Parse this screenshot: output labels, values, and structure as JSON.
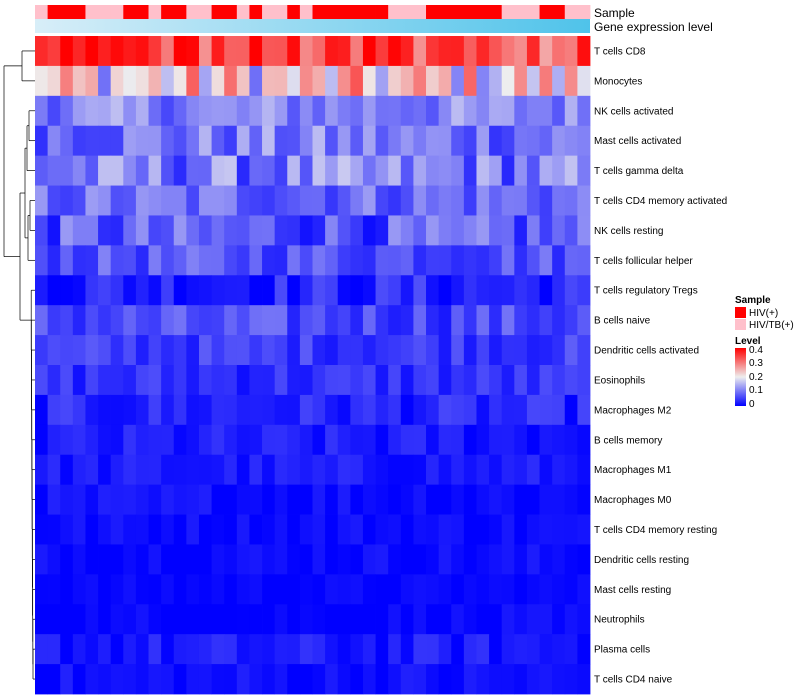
{
  "chart_data": {
    "type": "heatmap",
    "title": "",
    "rows": [
      "T cells CD8",
      "Monocytes",
      "NK cells activated",
      "Mast cells activated",
      "T cells gamma delta",
      "T cells CD4 memory activated",
      "NK cells resting",
      "T cells follicular helper",
      "T cells regulatory  Tregs",
      "B cells naive",
      "Dendritic cells activated",
      "Eosinophils",
      "Macrophages M2",
      "B cells memory",
      "Macrophages M1",
      "Macrophages M0",
      "T cells CD4 memory resting",
      "Dendritic cells resting",
      "Mast cells resting",
      "Neutrophils",
      "Plasma cells",
      "T cells CD4 naive"
    ],
    "n_samples": 44,
    "row_mean_levels": [
      0.34,
      0.21,
      0.11,
      0.1,
      0.1,
      0.09,
      0.07,
      0.07,
      0.03,
      0.06,
      0.05,
      0.04,
      0.03,
      0.02,
      0.02,
      0.01,
      0.01,
      0.01,
      0.005,
      0.0,
      0.02,
      0.01
    ],
    "sample_groups": [
      "T",
      "H",
      "H",
      "H",
      "T",
      "T",
      "T",
      "H",
      "H",
      "T",
      "H",
      "H",
      "T",
      "T",
      "H",
      "H",
      "T",
      "H",
      "T",
      "T",
      "H",
      "T",
      "H",
      "H",
      "H",
      "H",
      "H",
      "H",
      "T",
      "T",
      "T",
      "H",
      "H",
      "H",
      "H",
      "H",
      "H",
      "T",
      "T",
      "T",
      "H",
      "H",
      "T",
      "T"
    ],
    "annotations": {
      "sample_title": "Sample",
      "gene_expression_title": "Gene expression level"
    },
    "legend": {
      "sample": {
        "title": "Sample",
        "entries": [
          {
            "label": "HIV(+)",
            "color": "#ff0000"
          },
          {
            "label": "HIV/TB(+)",
            "color": "#ffc0cb"
          }
        ]
      },
      "level": {
        "title": "Level",
        "ticks": [
          "0.4",
          "0.3",
          "0.2",
          "0.1",
          "0"
        ],
        "range": [
          0,
          0.4
        ],
        "colors": [
          "#0000ff",
          "#eeeeee",
          "#ff0000"
        ]
      }
    },
    "gradient_colors": [
      "#d8eef8",
      "#4fc3ea"
    ]
  }
}
